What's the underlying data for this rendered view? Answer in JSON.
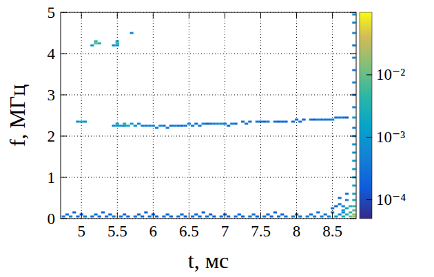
{
  "chart_data": {
    "type": "heatmap",
    "x_label": "t, мс",
    "y_label": "f, МГц",
    "xlim": [
      4.71,
      8.83
    ],
    "xticks": [
      5,
      5.5,
      6,
      6.5,
      7,
      7.5,
      8,
      8.5
    ],
    "ylim": [
      0,
      5
    ],
    "yticks": [
      0,
      1,
      2,
      3,
      4,
      5
    ],
    "grid": true,
    "t_step": 0.05,
    "f_step": 0.05,
    "color_range": [
      5e-05,
      0.1
    ],
    "color_ticks": [
      {
        "value": 0.01,
        "label": "10⁻²"
      },
      {
        "value": 0.001,
        "label": "10⁻³"
      },
      {
        "value": 0.0001,
        "label": "10⁻⁴"
      }
    ],
    "cells": [
      [
        5.2,
        4.25,
        0.008
      ],
      [
        5.2,
        4.3,
        0.004
      ],
      [
        5.25,
        4.25,
        0.003
      ],
      [
        5.15,
        4.2,
        0.001
      ],
      [
        5.5,
        4.25,
        0.004
      ],
      [
        5.5,
        4.3,
        0.002
      ],
      [
        5.45,
        4.2,
        0.0008
      ],
      [
        5.5,
        4.2,
        0.001
      ],
      [
        5.7,
        4.5,
        0.0005
      ],
      [
        4.95,
        2.35,
        0.0006
      ],
      [
        5.0,
        2.35,
        0.002
      ],
      [
        5.05,
        2.35,
        0.0008
      ],
      [
        5.45,
        2.25,
        0.0006
      ],
      [
        5.5,
        2.3,
        0.002
      ],
      [
        5.5,
        2.25,
        0.001
      ],
      [
        5.55,
        2.25,
        0.001
      ],
      [
        5.6,
        2.3,
        0.003
      ],
      [
        5.6,
        2.25,
        0.0008
      ],
      [
        5.65,
        2.25,
        0.002
      ],
      [
        5.7,
        2.3,
        0.0015
      ],
      [
        5.75,
        2.25,
        0.0008
      ],
      [
        5.8,
        2.3,
        0.0006
      ],
      [
        5.85,
        2.25,
        0.0005
      ],
      [
        5.9,
        2.25,
        0.0004
      ],
      [
        5.95,
        2.25,
        0.0006
      ],
      [
        6.0,
        2.25,
        0.0005
      ],
      [
        6.05,
        2.2,
        0.0004
      ],
      [
        6.1,
        2.25,
        0.0007
      ],
      [
        6.15,
        2.25,
        0.0003
      ],
      [
        6.2,
        2.2,
        0.0004
      ],
      [
        6.25,
        2.25,
        0.0003
      ],
      [
        6.3,
        2.25,
        0.0005
      ],
      [
        6.35,
        2.25,
        0.0004
      ],
      [
        6.4,
        2.25,
        0.0002
      ],
      [
        6.45,
        2.25,
        0.0004
      ],
      [
        6.5,
        2.3,
        0.0006
      ],
      [
        6.55,
        2.25,
        0.0004
      ],
      [
        6.6,
        2.3,
        0.0003
      ],
      [
        6.65,
        2.25,
        0.0004
      ],
      [
        6.7,
        2.3,
        0.0005
      ],
      [
        6.75,
        2.3,
        0.0002
      ],
      [
        6.8,
        2.3,
        0.0003
      ],
      [
        6.85,
        2.3,
        0.0005
      ],
      [
        6.9,
        2.3,
        0.0008
      ],
      [
        6.95,
        2.3,
        0.0007
      ],
      [
        7.0,
        2.3,
        0.0004
      ],
      [
        7.05,
        2.25,
        0.0003
      ],
      [
        7.1,
        2.3,
        0.0004
      ],
      [
        7.15,
        2.3,
        0.0003
      ],
      [
        7.25,
        2.35,
        0.0003
      ],
      [
        7.3,
        2.3,
        0.0004
      ],
      [
        7.35,
        2.35,
        0.0003
      ],
      [
        7.45,
        2.35,
        0.0004
      ],
      [
        7.5,
        2.35,
        0.0003
      ],
      [
        7.55,
        2.35,
        0.0002
      ],
      [
        7.6,
        2.35,
        0.0004
      ],
      [
        7.7,
        2.35,
        0.0003
      ],
      [
        7.75,
        2.35,
        0.0002
      ],
      [
        7.8,
        2.35,
        0.0003
      ],
      [
        7.85,
        2.35,
        0.0002
      ],
      [
        7.95,
        2.35,
        0.0003
      ],
      [
        8.0,
        2.4,
        0.0003
      ],
      [
        8.05,
        2.35,
        0.0004
      ],
      [
        8.1,
        2.4,
        0.0002
      ],
      [
        8.2,
        2.4,
        0.0003
      ],
      [
        8.25,
        2.4,
        0.0002
      ],
      [
        8.3,
        2.4,
        0.0004
      ],
      [
        8.35,
        2.4,
        0.0003
      ],
      [
        8.4,
        2.4,
        0.0003
      ],
      [
        8.45,
        2.4,
        0.0004
      ],
      [
        8.5,
        2.4,
        0.0005
      ],
      [
        8.55,
        2.45,
        0.0003
      ],
      [
        8.6,
        2.45,
        0.0004
      ],
      [
        8.65,
        2.45,
        0.0003
      ],
      [
        8.7,
        2.45,
        0.0002
      ],
      [
        4.75,
        0.05,
        0.0004
      ],
      [
        4.85,
        0.05,
        0.0005
      ],
      [
        4.95,
        0.05,
        0.0003
      ],
      [
        5.05,
        0.05,
        0.0004
      ],
      [
        5.15,
        0.05,
        0.0003
      ],
      [
        5.25,
        0.05,
        0.0002
      ],
      [
        5.35,
        0.05,
        0.0003
      ],
      [
        5.45,
        0.05,
        0.0004
      ],
      [
        5.55,
        0.05,
        0.0003
      ],
      [
        5.65,
        0.05,
        0.0002
      ],
      [
        5.75,
        0.05,
        0.0003
      ],
      [
        5.85,
        0.05,
        0.0002
      ],
      [
        5.95,
        0.05,
        0.0003
      ],
      [
        6.05,
        0.05,
        0.0002
      ],
      [
        6.15,
        0.05,
        0.0003
      ],
      [
        6.25,
        0.05,
        0.0002
      ],
      [
        6.35,
        0.05,
        0.0003
      ],
      [
        6.45,
        0.05,
        0.0002
      ],
      [
        6.55,
        0.05,
        0.0003
      ],
      [
        6.65,
        0.05,
        0.0002
      ],
      [
        6.75,
        0.05,
        0.0003
      ],
      [
        6.85,
        0.05,
        0.0002
      ],
      [
        6.95,
        0.05,
        0.0003
      ],
      [
        7.05,
        0.05,
        0.0002
      ],
      [
        7.15,
        0.05,
        0.0003
      ],
      [
        7.25,
        0.05,
        0.0002
      ],
      [
        7.35,
        0.05,
        0.0003
      ],
      [
        7.45,
        0.05,
        0.0002
      ],
      [
        7.55,
        0.05,
        0.0003
      ],
      [
        7.65,
        0.05,
        0.0002
      ],
      [
        7.75,
        0.05,
        0.0003
      ],
      [
        7.85,
        0.05,
        0.0003
      ],
      [
        7.95,
        0.05,
        0.0004
      ],
      [
        8.05,
        0.05,
        0.0003
      ],
      [
        8.15,
        0.05,
        0.0004
      ],
      [
        8.25,
        0.05,
        0.0004
      ],
      [
        8.35,
        0.05,
        0.0005
      ],
      [
        8.45,
        0.05,
        0.0006
      ],
      [
        8.55,
        0.05,
        0.0008
      ],
      [
        8.65,
        0.05,
        0.002
      ],
      [
        8.75,
        0.05,
        0.01
      ],
      [
        4.8,
        0.1,
        0.0003
      ],
      [
        5.0,
        0.1,
        0.0002
      ],
      [
        5.2,
        0.1,
        0.0003
      ],
      [
        5.4,
        0.1,
        0.0002
      ],
      [
        5.6,
        0.1,
        0.0002
      ],
      [
        5.8,
        0.1,
        0.0002
      ],
      [
        6.0,
        0.1,
        0.0003
      ],
      [
        6.2,
        0.1,
        0.0002
      ],
      [
        6.4,
        0.1,
        0.0002
      ],
      [
        6.6,
        0.1,
        0.0002
      ],
      [
        6.8,
        0.1,
        0.0002
      ],
      [
        7.0,
        0.1,
        0.0002
      ],
      [
        7.2,
        0.1,
        0.0002
      ],
      [
        7.4,
        0.1,
        0.0003
      ],
      [
        7.6,
        0.1,
        0.0002
      ],
      [
        7.8,
        0.1,
        0.0002
      ],
      [
        8.0,
        0.1,
        0.0003
      ],
      [
        8.2,
        0.1,
        0.0003
      ],
      [
        8.4,
        0.1,
        0.0004
      ],
      [
        8.6,
        0.1,
        0.0008
      ],
      [
        8.7,
        0.1,
        0.003
      ],
      [
        4.9,
        0.15,
        0.0002
      ],
      [
        5.3,
        0.15,
        0.0002
      ],
      [
        5.9,
        0.15,
        0.0002
      ],
      [
        6.7,
        0.15,
        0.0002
      ],
      [
        7.7,
        0.15,
        0.0002
      ],
      [
        8.3,
        0.15,
        0.0003
      ],
      [
        8.5,
        0.15,
        0.0004
      ],
      [
        8.65,
        0.15,
        0.0006
      ],
      [
        8.5,
        0.25,
        0.0003
      ],
      [
        8.55,
        0.3,
        0.0002
      ],
      [
        8.6,
        0.35,
        0.0004
      ],
      [
        8.65,
        0.3,
        0.0006
      ],
      [
        8.6,
        0.5,
        0.0003
      ],
      [
        8.7,
        0.45,
        0.0005
      ],
      [
        8.7,
        0.6,
        0.0003
      ],
      [
        8.65,
        0.2,
        0.001
      ],
      [
        8.7,
        0.25,
        0.002
      ],
      [
        8.75,
        0.15,
        0.005
      ],
      [
        8.75,
        0.3,
        0.003
      ],
      [
        8.8,
        0.05,
        0.02
      ],
      [
        8.8,
        0.1,
        0.015
      ],
      [
        8.8,
        0.2,
        0.008
      ],
      [
        8.8,
        0.3,
        0.005
      ],
      [
        8.8,
        0.45,
        0.003
      ],
      [
        8.8,
        0.6,
        0.002
      ],
      [
        8.8,
        0.8,
        0.002
      ],
      [
        8.8,
        1.0,
        0.0015
      ],
      [
        8.8,
        1.2,
        0.001
      ],
      [
        8.8,
        1.4,
        0.0012
      ],
      [
        8.8,
        1.6,
        0.0008
      ],
      [
        8.8,
        1.8,
        0.001
      ],
      [
        8.8,
        2.0,
        0.0008
      ],
      [
        8.8,
        2.2,
        0.0006
      ],
      [
        8.8,
        2.45,
        0.0015
      ],
      [
        8.8,
        2.7,
        0.0006
      ],
      [
        8.8,
        3.0,
        0.0005
      ],
      [
        8.8,
        3.3,
        0.0006
      ],
      [
        8.8,
        3.6,
        0.0004
      ],
      [
        8.8,
        3.9,
        0.0005
      ],
      [
        8.8,
        4.2,
        0.0004
      ],
      [
        8.8,
        4.5,
        0.0006
      ],
      [
        8.8,
        4.75,
        0.0005
      ],
      [
        8.8,
        4.95,
        0.0008
      ]
    ]
  }
}
